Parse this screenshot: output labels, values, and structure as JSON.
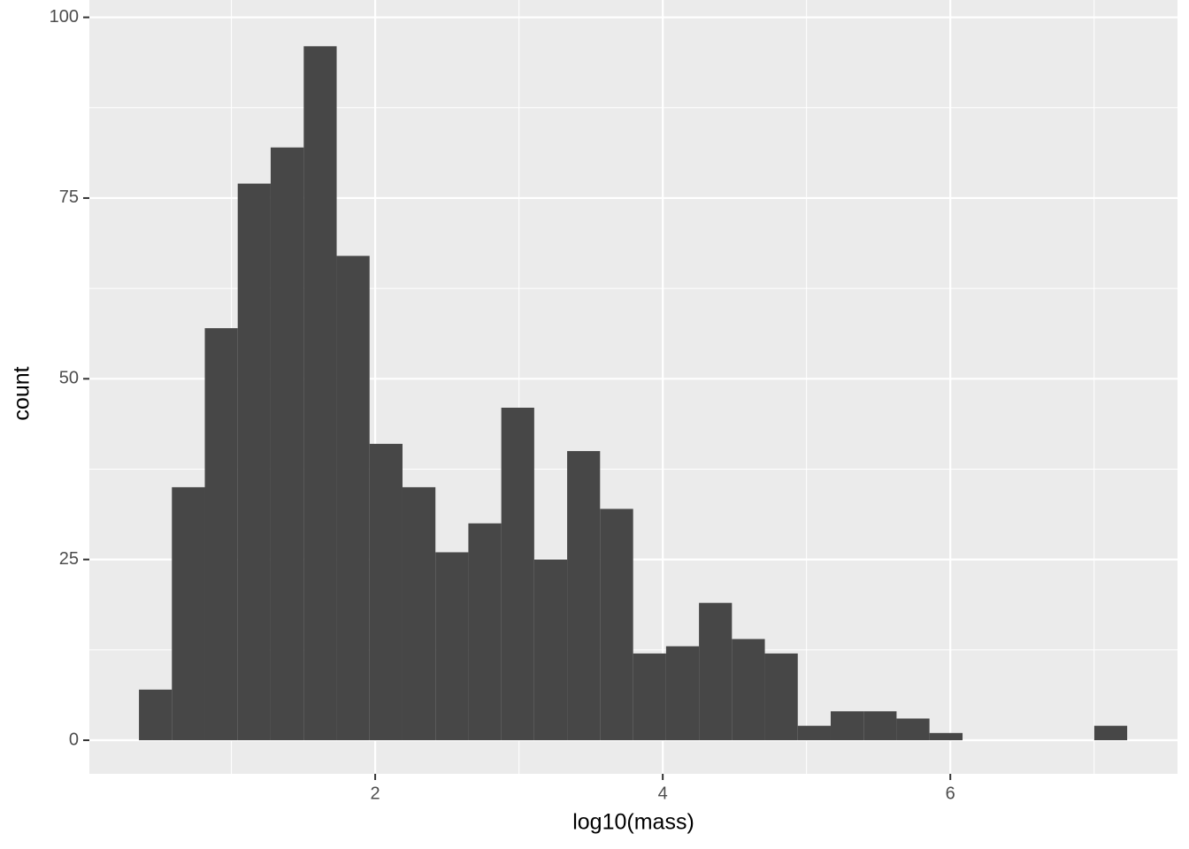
{
  "chart_data": {
    "type": "histogram",
    "x_label": "log10(mass)",
    "y_label": "count",
    "bins": [
      0.357,
      0.586,
      0.815,
      1.044,
      1.273,
      1.503,
      1.732,
      1.961,
      2.19,
      2.419,
      2.648,
      2.877,
      3.106,
      3.335,
      3.564,
      3.794,
      4.023,
      4.252,
      4.481,
      4.71,
      4.939,
      5.168,
      5.397,
      5.626,
      5.855,
      6.085,
      6.314,
      6.543,
      6.772,
      7.001,
      7.23
    ],
    "values": [
      7,
      35,
      57,
      77,
      82,
      96,
      67,
      41,
      35,
      26,
      30,
      46,
      25,
      40,
      32,
      12,
      13,
      19,
      14,
      12,
      2,
      4,
      4,
      3,
      1,
      0,
      0,
      0,
      0,
      2
    ],
    "color": "#474747",
    "xlim": [
      0.012,
      7.58
    ],
    "ylim": [
      -4.65,
      102.4
    ],
    "xticks": [
      2,
      4,
      6
    ],
    "yticks": [
      0,
      25,
      50,
      75,
      100
    ],
    "x_minor_ticks": [
      1,
      3,
      5,
      7
    ],
    "y_minor_ticks": [
      12.5,
      37.5,
      62.5,
      87.5
    ],
    "grid": true
  }
}
